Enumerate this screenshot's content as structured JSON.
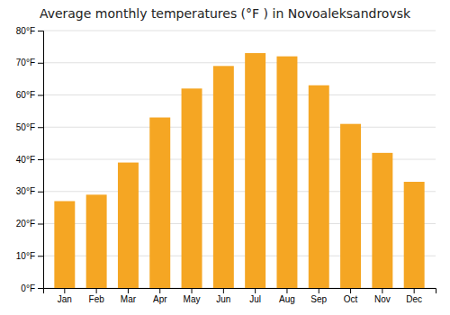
{
  "chart_data": {
    "type": "bar",
    "title": "Average monthly temperatures (°F ) in Novoaleksandrovsk",
    "categories": [
      "Jan",
      "Feb",
      "Mar",
      "Apr",
      "May",
      "Jun",
      "Jul",
      "Aug",
      "Sep",
      "Oct",
      "Nov",
      "Dec"
    ],
    "values": [
      27,
      29,
      39,
      53,
      62,
      69,
      73,
      72,
      63,
      51,
      42,
      33
    ],
    "color": "#F5A623",
    "ylim": [
      0,
      80
    ],
    "yticks": [
      {
        "value": 0,
        "label": "0°F"
      },
      {
        "value": 10,
        "label": "10°F"
      },
      {
        "value": 20,
        "label": "20°F"
      },
      {
        "value": 30,
        "label": "30°F"
      },
      {
        "value": 40,
        "label": "40°F"
      },
      {
        "value": 50,
        "label": "50°F"
      },
      {
        "value": 60,
        "label": "60°F"
      },
      {
        "value": 70,
        "label": "70°F"
      },
      {
        "value": 80,
        "label": "80°F"
      }
    ],
    "grid": true
  }
}
